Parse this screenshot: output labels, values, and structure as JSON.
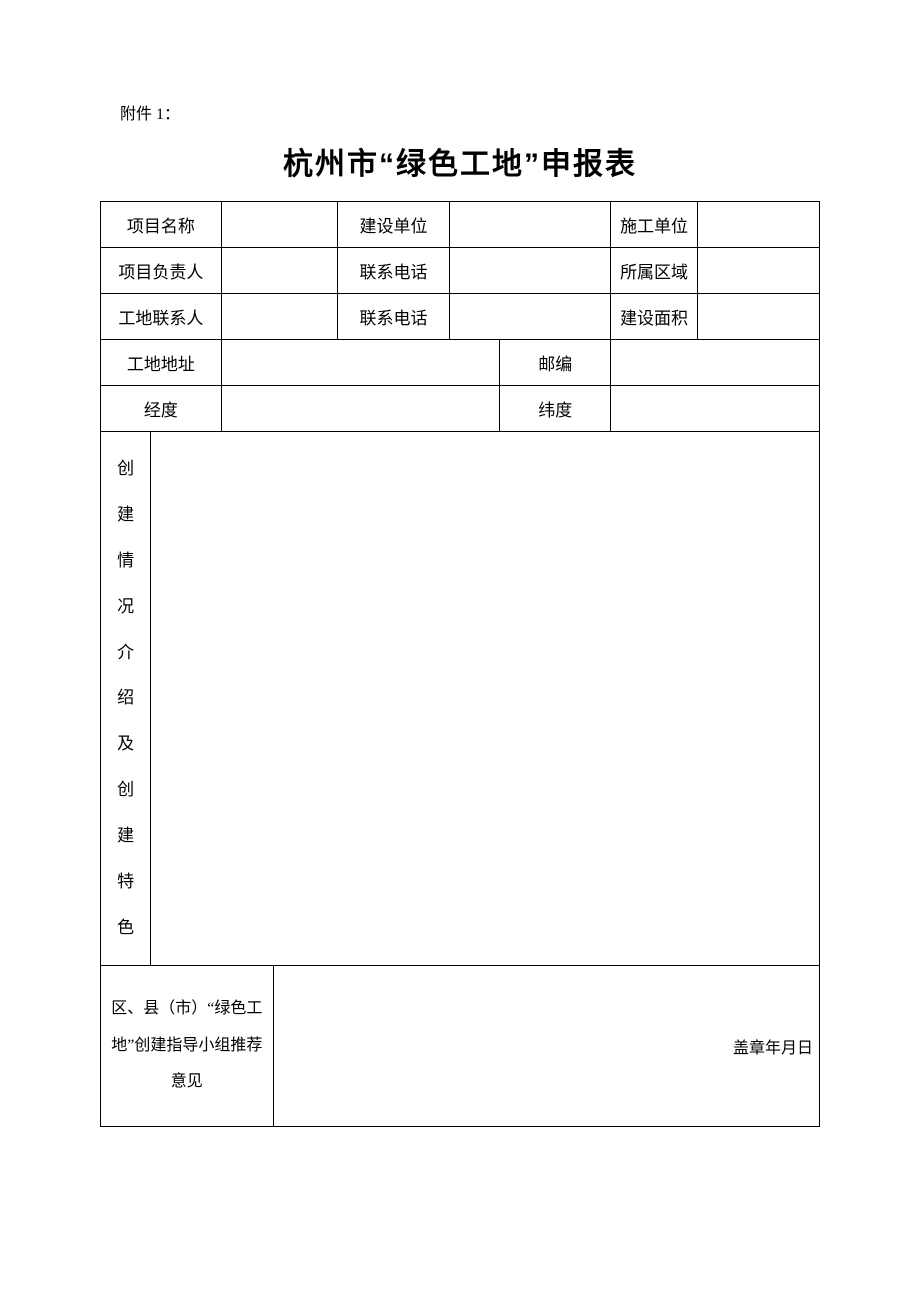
{
  "attachment_label": "附件 1：",
  "title": "杭州市“绿色工地”申报表",
  "table": {
    "row1": {
      "c1": "项目名称",
      "c2": "",
      "c3": "建设单位",
      "c4": "",
      "c5": "施工单位",
      "c6": ""
    },
    "row2": {
      "c1": "项目负责人",
      "c2": "",
      "c3": "联系电话",
      "c4": "",
      "c5": "所属区域",
      "c6": ""
    },
    "row3": {
      "c1": "工地联系人",
      "c2": "",
      "c3": "联系电话",
      "c4": "",
      "c5": "建设面积",
      "c6": ""
    },
    "row4": {
      "c1": "工地地址",
      "c2": "",
      "c3": "邮编",
      "c4": ""
    },
    "row5": {
      "c1": "经度",
      "c2": "",
      "c3": "纬度",
      "c4": ""
    },
    "row6": {
      "label_chars": [
        "创",
        "建",
        "情",
        "况",
        "介",
        "绍",
        "及",
        "创",
        "建",
        "特",
        "色"
      ],
      "content": ""
    },
    "row7": {
      "label": "区、县（市）“绿色工地”创建指导小组推荐意见",
      "content": "",
      "stamp": "盖章年月日"
    }
  }
}
